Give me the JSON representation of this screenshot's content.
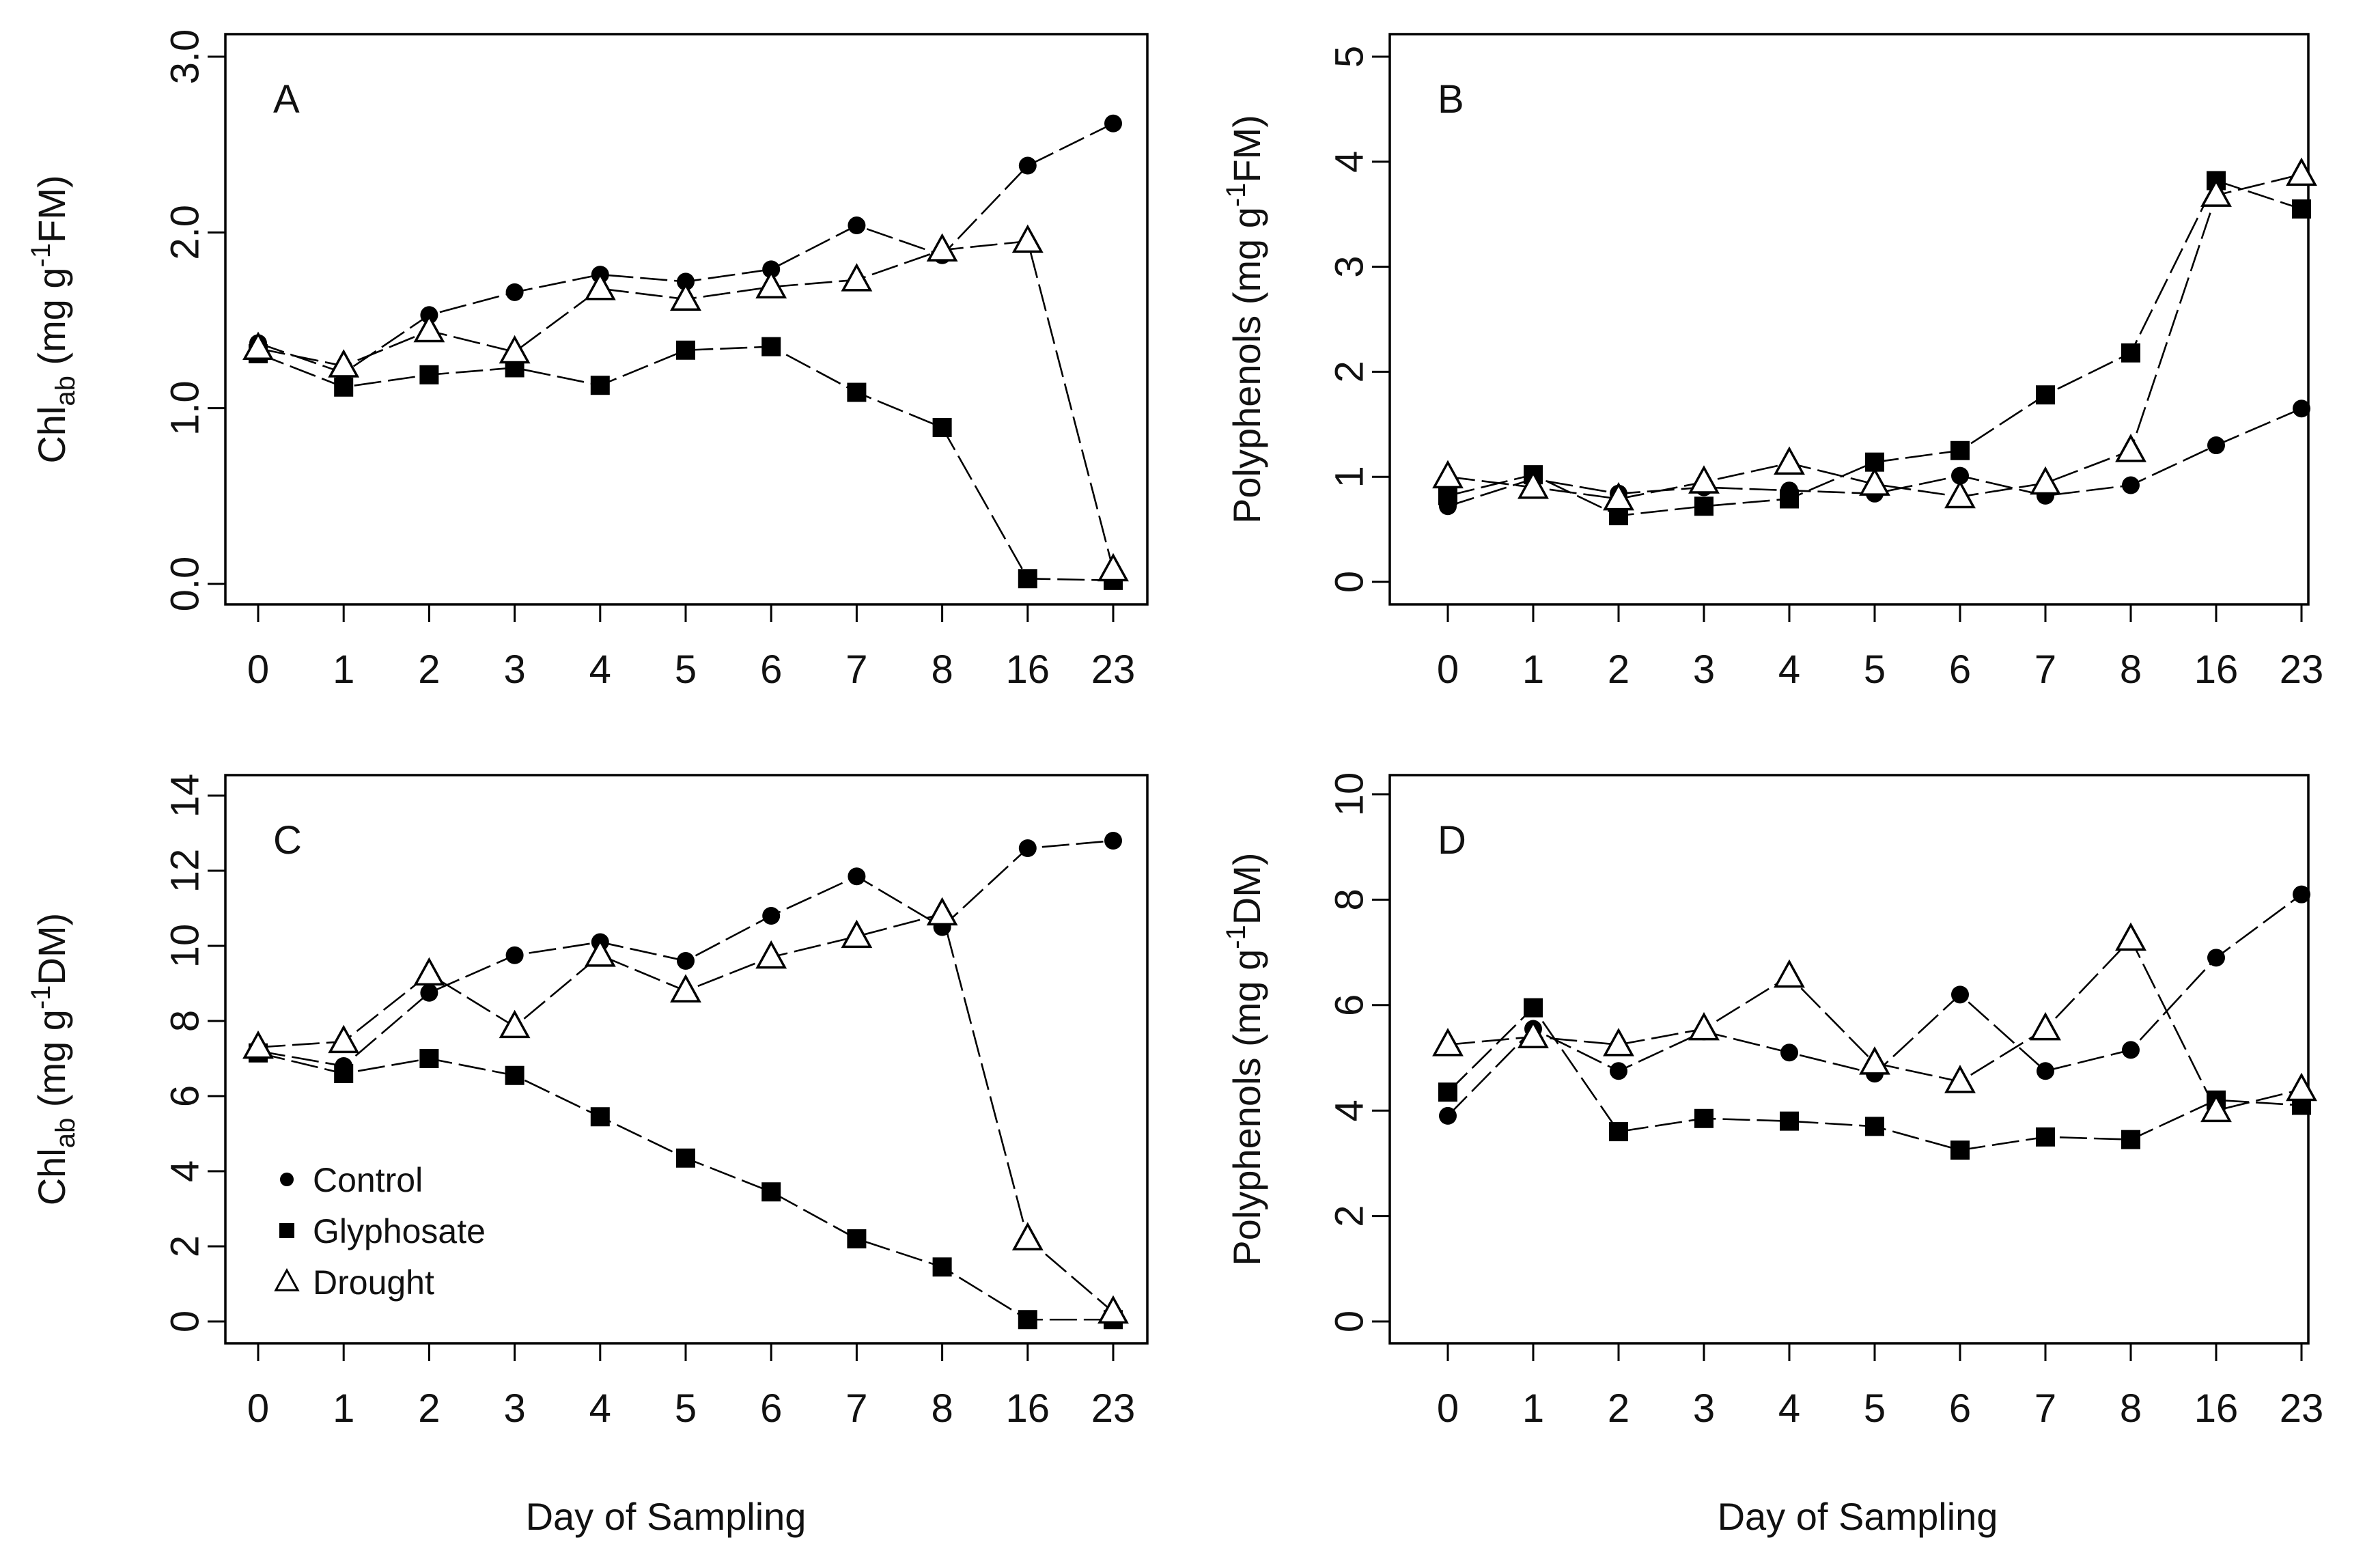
{
  "figure": {
    "x_title": "Day of Sampling",
    "legend": [
      {
        "label": "Control",
        "marker": "circle"
      },
      {
        "label": "Glyphosate",
        "marker": "square"
      },
      {
        "label": "Drought",
        "marker": "triangle"
      }
    ]
  },
  "chart_data": [
    {
      "type": "line",
      "panel": "A",
      "ylabel": "Chl_ab (mg g-1FM)",
      "ylabel_parts": {
        "main": "Chl",
        "sub": "ab",
        "unit_pre": " (mg g",
        "sup": "-1",
        "unit_post": "FM)"
      },
      "xlabel": "Day of Sampling",
      "categories": [
        "0",
        "1",
        "2",
        "3",
        "4",
        "5",
        "6",
        "7",
        "8",
        "16",
        "23"
      ],
      "ylim": [
        0,
        3.0
      ],
      "yticks": [
        0,
        1,
        2,
        3
      ],
      "yticklabels": [
        "0.0",
        "1.0",
        "2.0",
        "3.0"
      ],
      "series": [
        {
          "name": "Control",
          "marker": "circle",
          "values": [
            1.37,
            1.2,
            1.53,
            1.66,
            1.76,
            1.72,
            1.79,
            2.04,
            1.87,
            2.38,
            2.62
          ]
        },
        {
          "name": "Glyphosate",
          "marker": "square",
          "values": [
            1.31,
            1.12,
            1.19,
            1.23,
            1.13,
            1.33,
            1.35,
            1.09,
            0.89,
            0.03,
            0.02
          ]
        },
        {
          "name": "Drought",
          "marker": "triangle",
          "values": [
            1.34,
            1.24,
            1.44,
            1.32,
            1.68,
            1.62,
            1.69,
            1.73,
            1.9,
            1.95,
            0.08
          ]
        }
      ]
    },
    {
      "type": "line",
      "panel": "B",
      "ylabel": "Polyphenols (mg g-1FM)",
      "ylabel_parts": {
        "main": "Polyphenols (mg g",
        "sub": "",
        "unit_pre": "",
        "sup": "-1",
        "unit_post": "FM)"
      },
      "xlabel": "Day of Sampling",
      "categories": [
        "0",
        "1",
        "2",
        "3",
        "4",
        "5",
        "6",
        "7",
        "8",
        "16",
        "23"
      ],
      "ylim": [
        0,
        5
      ],
      "yticks": [
        0,
        1,
        2,
        3,
        4,
        5
      ],
      "yticklabels": [
        "0",
        "1",
        "2",
        "3",
        "4",
        "5"
      ],
      "series": [
        {
          "name": "Control",
          "marker": "circle",
          "values": [
            0.72,
            0.98,
            0.84,
            0.9,
            0.87,
            0.84,
            1.01,
            0.82,
            0.92,
            1.3,
            1.65
          ]
        },
        {
          "name": "Glyphosate",
          "marker": "square",
          "values": [
            0.82,
            1.02,
            0.63,
            0.72,
            0.79,
            1.14,
            1.25,
            1.78,
            2.18,
            3.82,
            3.55
          ]
        },
        {
          "name": "Drought",
          "marker": "triangle",
          "values": [
            1.0,
            0.9,
            0.79,
            0.95,
            1.13,
            0.93,
            0.81,
            0.94,
            1.25,
            3.68,
            3.88
          ]
        }
      ]
    },
    {
      "type": "line",
      "panel": "C",
      "ylabel": "Chl_ab (mg g-1DM)",
      "ylabel_parts": {
        "main": "Chl",
        "sub": "ab",
        "unit_pre": " (mg g",
        "sup": "-1",
        "unit_post": "DM)"
      },
      "xlabel": "Day of Sampling",
      "categories": [
        "0",
        "1",
        "2",
        "3",
        "4",
        "5",
        "6",
        "7",
        "8",
        "16",
        "23"
      ],
      "ylim": [
        0,
        14
      ],
      "yticks": [
        0,
        2,
        4,
        6,
        8,
        10,
        12,
        14
      ],
      "yticklabels": [
        "0",
        "2",
        "4",
        "6",
        "8",
        "10",
        "12",
        "14"
      ],
      "series": [
        {
          "name": "Control",
          "marker": "circle",
          "values": [
            7.2,
            6.8,
            8.75,
            9.75,
            10.1,
            9.6,
            10.8,
            11.85,
            10.5,
            12.6,
            12.8
          ]
        },
        {
          "name": "Glyphosate",
          "marker": "square",
          "values": [
            7.15,
            6.6,
            7.0,
            6.55,
            5.45,
            4.35,
            3.45,
            2.2,
            1.45,
            0.05,
            0.05
          ]
        },
        {
          "name": "Drought",
          "marker": "triangle",
          "values": [
            7.3,
            7.45,
            9.25,
            7.85,
            9.75,
            8.8,
            9.7,
            10.25,
            10.85,
            2.2,
            0.25
          ]
        }
      ]
    },
    {
      "type": "line",
      "panel": "D",
      "ylabel": "Polyphenols (mg g-1DM)",
      "ylabel_parts": {
        "main": "Polyphenols (mg g",
        "sub": "",
        "unit_pre": "",
        "sup": "-1",
        "unit_post": "DM)"
      },
      "xlabel": "Day of Sampling",
      "categories": [
        "0",
        "1",
        "2",
        "3",
        "4",
        "5",
        "6",
        "7",
        "8",
        "16",
        "23"
      ],
      "ylim": [
        0,
        10
      ],
      "yticks": [
        0,
        2,
        4,
        6,
        8,
        10
      ],
      "yticklabels": [
        "0",
        "2",
        "4",
        "6",
        "8",
        "10"
      ],
      "series": [
        {
          "name": "Control",
          "marker": "circle",
          "values": [
            3.9,
            5.55,
            4.75,
            5.5,
            5.1,
            4.7,
            6.2,
            4.75,
            5.15,
            6.9,
            8.1
          ]
        },
        {
          "name": "Glyphosate",
          "marker": "square",
          "values": [
            4.35,
            5.95,
            3.6,
            3.85,
            3.8,
            3.7,
            3.25,
            3.5,
            3.45,
            4.2,
            4.1
          ]
        },
        {
          "name": "Drought",
          "marker": "triangle",
          "values": [
            5.25,
            5.4,
            5.25,
            5.55,
            6.55,
            4.9,
            4.55,
            5.55,
            7.25,
            4.0,
            4.4
          ]
        }
      ]
    }
  ]
}
